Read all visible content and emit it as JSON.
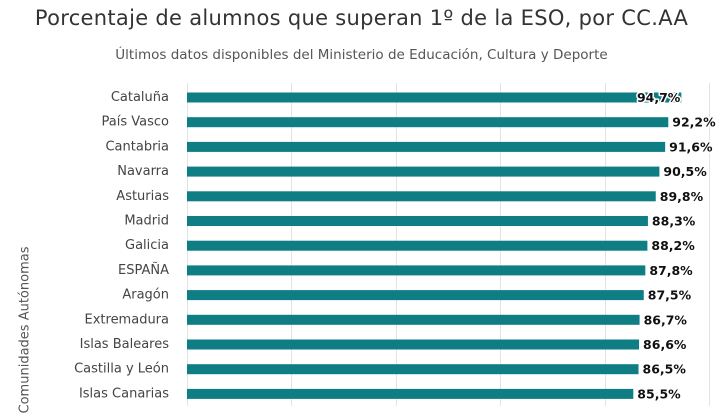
{
  "chart_data": {
    "type": "bar",
    "orientation": "horizontal",
    "title": "Porcentaje de alumnos que superan 1º de la ESO, por CC.AA",
    "subtitle": "Últimos datos disponibles del Ministerio de Educación, Cultura y Deporte",
    "ylabel": "Comunidades Autónomas",
    "xlabel": "",
    "categories": [
      "Cataluña",
      "País Vasco",
      "Cantabria",
      "Navarra",
      "Asturias",
      "Madrid",
      "Galicia",
      "ESPAÑA",
      "Aragón",
      "Extremadura",
      "Islas Baleares",
      "Castilla y León",
      "Islas Canarias"
    ],
    "values": [
      94.7,
      92.2,
      91.6,
      90.5,
      89.8,
      88.3,
      88.2,
      87.8,
      87.5,
      86.7,
      86.6,
      86.5,
      85.5
    ],
    "value_labels": [
      "94,7%",
      "92,2%",
      "91,6%",
      "90,5%",
      "89,8%",
      "88,3%",
      "88,2%",
      "87,8%",
      "87,5%",
      "86,7%",
      "86,6%",
      "86,5%",
      "85,5%"
    ],
    "xlim": [
      0,
      100
    ],
    "grid": true,
    "colors": {
      "bar": "#0e7d84",
      "grid": "#e3e3e3"
    }
  }
}
